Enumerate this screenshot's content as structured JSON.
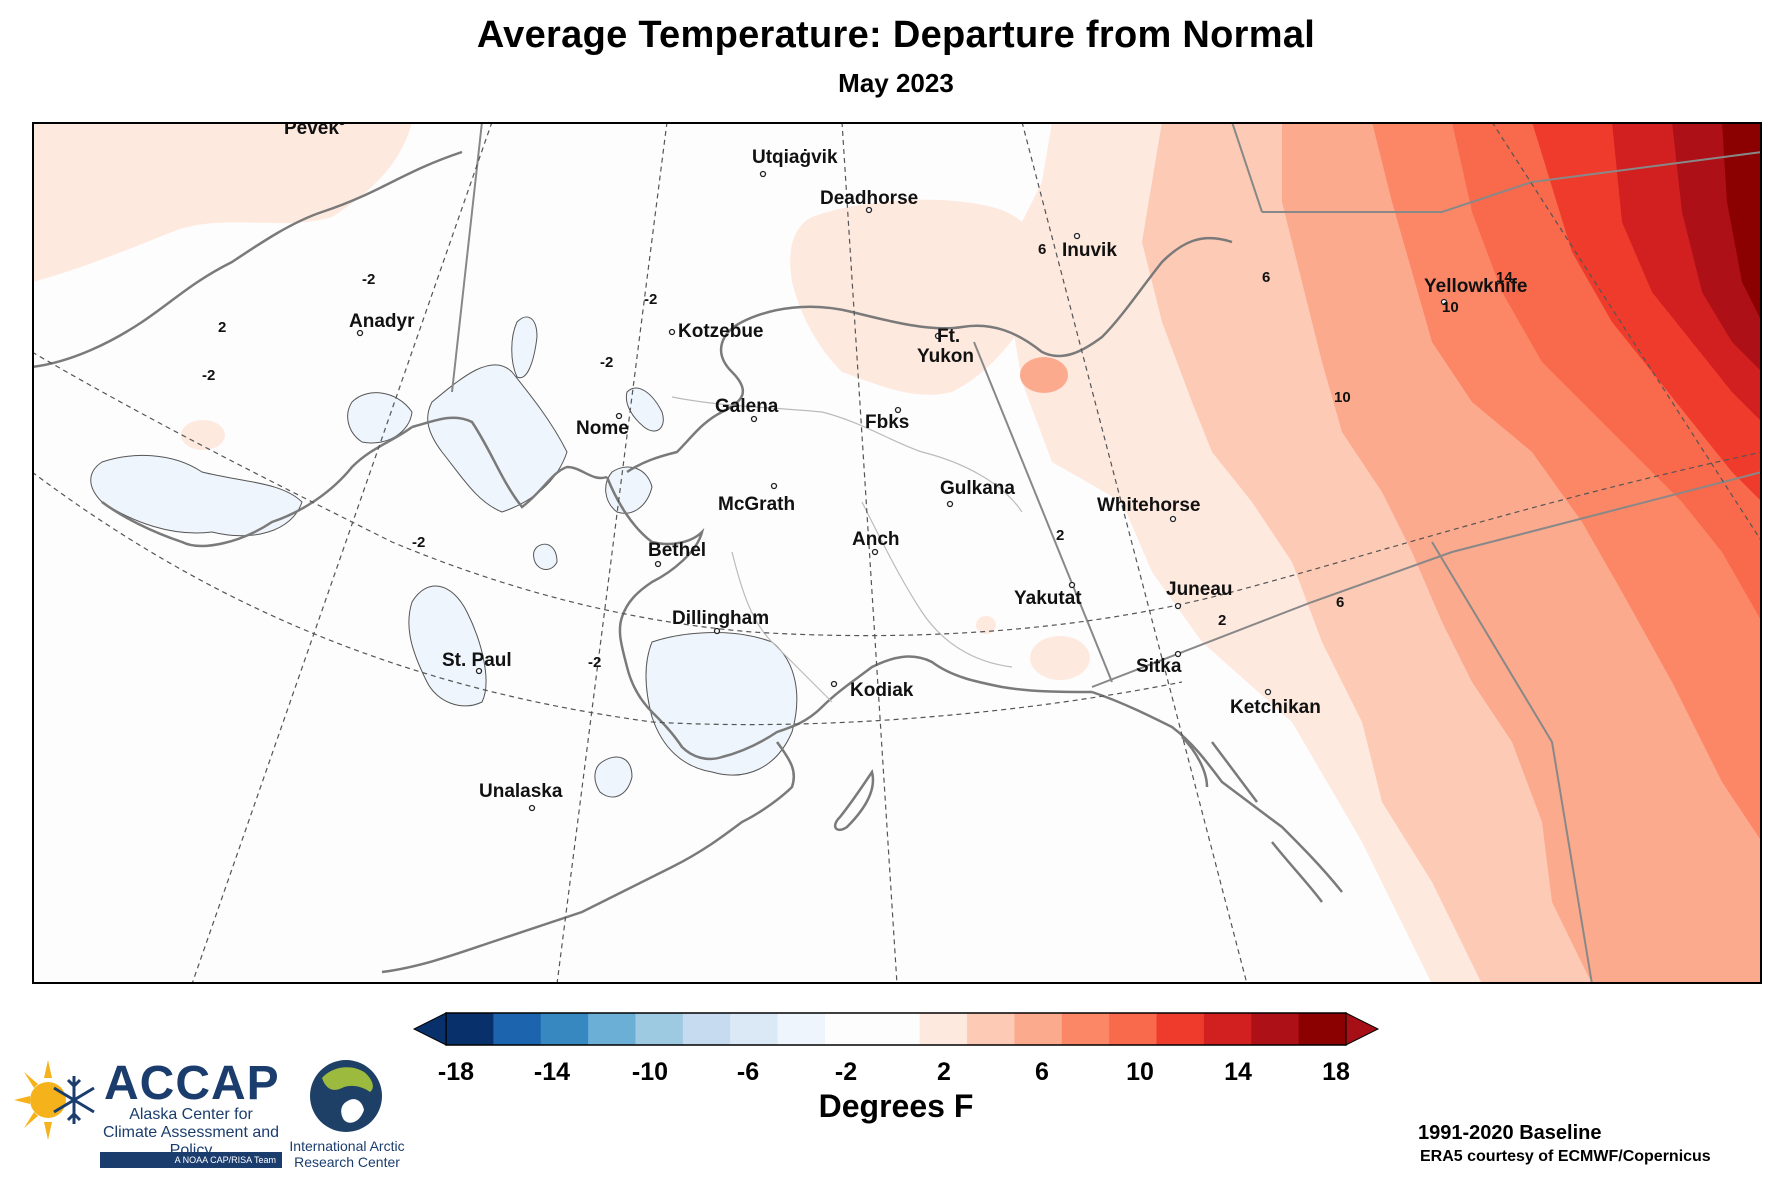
{
  "header": {
    "title": "Average Temperature: Departure from Normal",
    "subtitle": "May 2023"
  },
  "places": [
    {
      "id": "pevek",
      "name": "Pevek"
    },
    {
      "id": "utqiagvik",
      "name": "Utqiaġvik"
    },
    {
      "id": "deadhorse",
      "name": "Deadhorse"
    },
    {
      "id": "inuvik",
      "name": "Inuvik"
    },
    {
      "id": "yellowknife",
      "name": "Yellowknife"
    },
    {
      "id": "anadyr",
      "name": "Anadyr"
    },
    {
      "id": "kotzebue",
      "name": "Kotzebue"
    },
    {
      "id": "ftyukon1",
      "name": "Ft."
    },
    {
      "id": "ftyukon2",
      "name": "Yukon"
    },
    {
      "id": "galena",
      "name": "Galena"
    },
    {
      "id": "nome",
      "name": "Nome"
    },
    {
      "id": "fbks",
      "name": "Fbks"
    },
    {
      "id": "gulkana",
      "name": "Gulkana"
    },
    {
      "id": "mcgrath",
      "name": "McGrath"
    },
    {
      "id": "whitehorse",
      "name": "Whitehorse"
    },
    {
      "id": "bethel",
      "name": "Bethel"
    },
    {
      "id": "anch",
      "name": "Anch"
    },
    {
      "id": "dillingham",
      "name": "Dillingham"
    },
    {
      "id": "yakutat",
      "name": "Yakutat"
    },
    {
      "id": "juneau",
      "name": "Juneau"
    },
    {
      "id": "stpaul",
      "name": "St. Paul"
    },
    {
      "id": "sitka",
      "name": "Sitka"
    },
    {
      "id": "kodiak",
      "name": "Kodiak"
    },
    {
      "id": "ketchikan",
      "name": "Ketchikan"
    },
    {
      "id": "unalaska",
      "name": "Unalaska"
    }
  ],
  "contour_labels": [
    "-2",
    "2",
    "6",
    "10",
    "14"
  ],
  "legend": {
    "ticks": [
      "-18",
      "-14",
      "-10",
      "-6",
      "-2",
      "2",
      "6",
      "10",
      "14",
      "18"
    ],
    "units": "Degrees F",
    "colors": [
      "#08306b",
      "#1c64ae",
      "#3787c0",
      "#6baed6",
      "#9ecae1",
      "#c6dbef",
      "#dbe9f6",
      "#eef5fc",
      "#fdfdfd",
      "#fdfdfd",
      "#fee9df",
      "#fdcab5",
      "#fcaa8e",
      "#fc8767",
      "#f9694c",
      "#ef3b2c",
      "#d21f20",
      "#ad1016",
      "#8b0000"
    ],
    "low_arrow_color": "#08306b",
    "high_arrow_color": "#a50f15"
  },
  "footer": {
    "baseline": "1991-2020 Baseline",
    "credit": "ERA5 courtesy of ECMWF/Copernicus"
  },
  "logos": {
    "accap_name": "ACCAP",
    "accap_full": "Alaska Center for Climate Assessment and Policy",
    "accap_tag": "A NOAA CAP/RISA Team",
    "iarc_name": "International Arctic Research Center"
  }
}
